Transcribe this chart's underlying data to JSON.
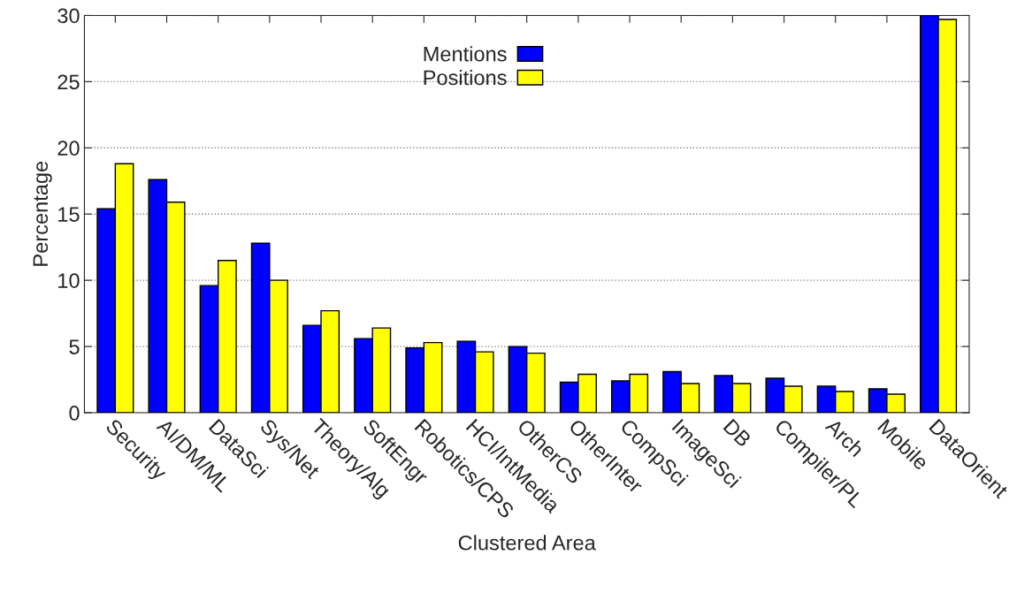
{
  "chart_data": {
    "type": "bar",
    "xlabel": "Clustered Area",
    "ylabel": "Percentage",
    "categories": [
      "Security",
      "AI/DM/ML",
      "DataSci",
      "Sys/Net",
      "Theory/Alg",
      "SoftEngr",
      "Robotics/CPS",
      "HCI/IntMedia",
      "OtherCS",
      "OtherInter",
      "CompSci",
      "ImageSci",
      "DB",
      "Compiler/PL",
      "Arch",
      "Mobile",
      "DataOrient"
    ],
    "series": [
      {
        "name": "Mentions",
        "color": "#0000ff",
        "values": [
          15.4,
          17.6,
          9.6,
          12.8,
          6.6,
          5.6,
          4.9,
          5.4,
          5.0,
          2.3,
          2.4,
          3.1,
          2.8,
          2.6,
          2.0,
          1.8,
          30.0
        ]
      },
      {
        "name": "Positions",
        "color": "#ffff00",
        "values": [
          18.8,
          15.9,
          11.5,
          10.0,
          7.7,
          6.4,
          5.3,
          4.6,
          4.5,
          2.9,
          2.9,
          2.2,
          2.2,
          2.0,
          1.6,
          1.4,
          29.7
        ]
      }
    ],
    "ylim": [
      0,
      30
    ],
    "yticks": [
      0,
      5,
      10,
      15,
      20,
      25,
      30
    ],
    "grid": "y",
    "legend": "top"
  }
}
